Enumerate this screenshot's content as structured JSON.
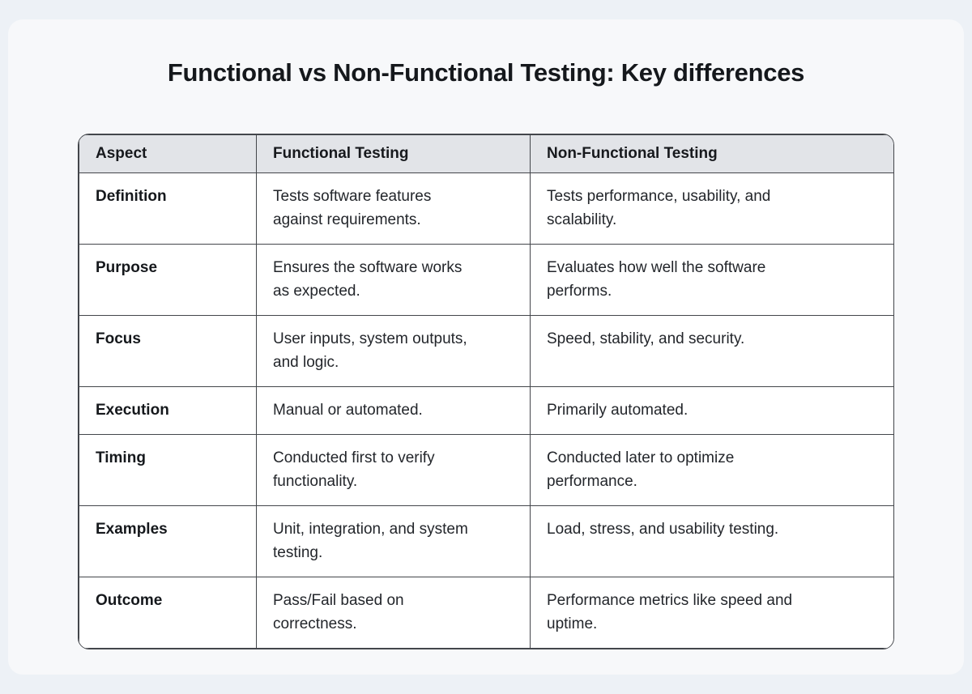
{
  "page": {
    "title": "Functional vs Non-Functional Testing: Key differences"
  },
  "chart_data": {
    "type": "table",
    "title": "Functional vs Non-Functional Testing: Key differences",
    "columns": [
      "Aspect",
      "Functional Testing",
      "Non-Functional Testing"
    ],
    "rows": [
      [
        "Definition",
        "Tests software features\nagainst requirements.",
        "Tests performance, usability, and\nscalability."
      ],
      [
        "Purpose",
        "Ensures the software works\nas expected.",
        "Evaluates how well the software\nperforms."
      ],
      [
        "Focus",
        "User inputs, system outputs,\nand logic.",
        "Speed, stability, and security."
      ],
      [
        "Execution",
        "Manual or automated.",
        "Primarily automated."
      ],
      [
        "Timing",
        "Conducted first to verify\nfunctionality.",
        "Conducted later to optimize\nperformance."
      ],
      [
        "Examples",
        "Unit, integration, and system\ntesting.",
        "Load, stress, and usability testing."
      ],
      [
        "Outcome",
        "Pass/Fail based on\ncorrectness.",
        "Performance metrics like speed and\nuptime."
      ]
    ]
  },
  "colors": {
    "background": "#edf1f6",
    "card": "#f7f8fa",
    "header_bg": "#e2e4e8",
    "cell_bg": "#ffffff",
    "border": "#43464b",
    "title_text": "#15181c",
    "body_text": "#23262b"
  }
}
